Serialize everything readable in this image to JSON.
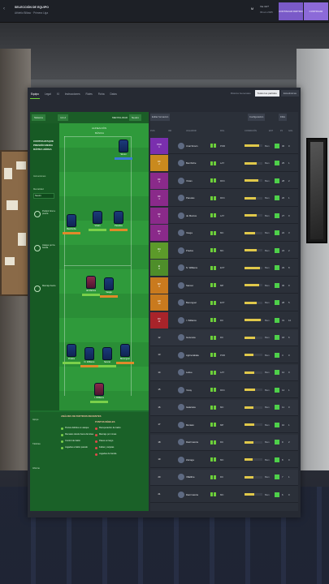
{
  "header": {
    "title": "SELECCIÓN DE EQUIPO",
    "subtitle": "Athletic Bilbao · Primera Liga",
    "money": "M",
    "date_top": "Vie 14/7",
    "date_bottom": "09:am 2025",
    "btn_continue": "CONTINUAR PARTIDO",
    "btn_next": "CONTINUAR"
  },
  "tabs": [
    "Equipo",
    "Legal",
    "XI",
    "Instrucciones",
    "Roles",
    "Ficha",
    "Datos"
  ],
  "view_tabs": [
    "Rótulos Generales",
    "Todos los partidos",
    "Estadísticas"
  ],
  "pitch": {
    "toolbar": {
      "formation": "Sistema",
      "shape": "4-4-2",
      "mentality_label": "MENTALIDAD",
      "mentality_value": "Neutro"
    },
    "left_col": {
      "title": "Contraataque Presión Media Rápida Aérea",
      "instructions_label": "Instrucciones",
      "mentality_label": "Mentalidad",
      "mentality_value": "Neutro",
      "items": [
        "Preferir tirar a puerta",
        "Ataque por la banda",
        "Marcaje fuerte"
      ]
    },
    "field_label_top": "ALINEACIÓN",
    "field_label_sub": "BÁSICA",
    "players": [
      {
        "name": "Simon",
        "bar": "blue"
      },
      {
        "name": "Berchiche",
        "bar": "orange"
      },
      {
        "name": "Vivian",
        "bar": "green"
      },
      {
        "name": "Paredes",
        "bar": "orange"
      },
      {
        "name": "de Marcos",
        "bar": "green"
      },
      {
        "name": "Vesga",
        "bar": "orange"
      },
      {
        "name": "Prados",
        "bar": "green"
      },
      {
        "name": "N. Williams",
        "bar": "orange"
      },
      {
        "name": "Sancet",
        "bar": "green"
      },
      {
        "name": "Berenguer",
        "bar": "orange"
      },
      {
        "name": "I. Williams",
        "bar": "green"
      }
    ],
    "bottom": {
      "left_head": "ANÁLISIS DE PARTIDOS RECIENTES",
      "right_head": "PUNTOS DÉBILES",
      "left_items": [
        "Puntos débiles en ataque",
        "Remates desde fuera del área",
        "Control de balón",
        "Jugadas a balón parado"
      ],
      "right_items": [
        "Recuperación de balón",
        "Marcaje por zonas",
        "Pases en largo",
        "Faltas y tarjetas",
        "Jugadas de banda"
      ],
      "side_items": [
        "Apoyo",
        "Tácticas",
        "Informe"
      ]
    }
  },
  "table": {
    "toolbar": {
      "left": "Editar formación",
      "mid": "Configuración",
      "right": "Filtro"
    },
    "columns": [
      "POS",
      "INF",
      "JUGADOR",
      "ROL",
      "CONDICIÓN",
      "EST",
      "PJ",
      "GOL"
    ],
    "rows": [
      {
        "pos": "POR",
        "num": "1",
        "name": "Unai Simón",
        "role": "POR",
        "fill": 0.8,
        "cond": "Bien",
        "pj": "30",
        "gol": "0",
        "color": "#7a2fae"
      },
      {
        "pos": "DF",
        "num": "2",
        "name": "Berchiche",
        "role": "LAT",
        "fill": 0.7,
        "cond": "Bien",
        "pj": "25",
        "gol": "1",
        "color": "#c98a1e"
      },
      {
        "pos": "DF",
        "num": "3",
        "name": "Vivian",
        "role": "DFC",
        "fill": 0.75,
        "cond": "Bien",
        "pj": "28",
        "gol": "2",
        "color": "#8a2a8a"
      },
      {
        "pos": "DF",
        "num": "4",
        "name": "Paredes",
        "role": "DFC",
        "fill": 0.65,
        "cond": "Bien",
        "pj": "26",
        "gol": "1",
        "color": "#8a2a8a"
      },
      {
        "pos": "DF",
        "num": "5",
        "name": "de Marcos",
        "role": "LAT",
        "fill": 0.7,
        "cond": "Bien",
        "pj": "27",
        "gol": "0",
        "color": "#8a2a8a"
      },
      {
        "pos": "MC",
        "num": "6",
        "name": "Vesga",
        "role": "MC",
        "fill": 0.6,
        "cond": "Bien",
        "pj": "22",
        "gol": "3",
        "color": "#8a2a8a"
      },
      {
        "pos": "MC",
        "num": "7",
        "name": "Prados",
        "role": "MC",
        "fill": 0.7,
        "cond": "Bien",
        "pj": "24",
        "gol": "2",
        "color": "#5c9a2a"
      },
      {
        "pos": "EI",
        "num": "8",
        "name": "N. Williams",
        "role": "EXT",
        "fill": 0.85,
        "cond": "Bien",
        "pj": "29",
        "gol": "8",
        "color": "#4e8e2a"
      },
      {
        "pos": "MP",
        "num": "9",
        "name": "Sancet",
        "role": "MP",
        "fill": 0.8,
        "cond": "Bien",
        "pj": "30",
        "gol": "9",
        "color": "#c97a1e"
      },
      {
        "pos": "ED",
        "num": "10",
        "name": "Berenguer",
        "role": "EXT",
        "fill": 0.7,
        "cond": "Bien",
        "pj": "28",
        "gol": "5",
        "color": "#c97a1e"
      },
      {
        "pos": "DC",
        "num": "11",
        "name": "I. Williams",
        "role": "DC",
        "fill": 0.9,
        "cond": "Bien",
        "pj": "31",
        "gol": "12",
        "color": "#a8242a"
      },
      {
        "pos": "",
        "num": "12",
        "name": "Guruzeta",
        "role": "DC",
        "fill": 0.6,
        "cond": "Bien",
        "pj": "18",
        "gol": "6",
        "color": ""
      },
      {
        "pos": "",
        "num": "13",
        "name": "Agirrezabala",
        "role": "POR",
        "fill": 0.5,
        "cond": "Bien",
        "pj": "4",
        "gol": "0",
        "color": ""
      },
      {
        "pos": "",
        "num": "14",
        "name": "Lekue",
        "role": "LAT",
        "fill": 0.55,
        "cond": "Bien",
        "pj": "12",
        "gol": "0",
        "color": ""
      },
      {
        "pos": "",
        "num": "15",
        "name": "Yeray",
        "role": "DFC",
        "fill": 0.6,
        "cond": "Bien",
        "pj": "14",
        "gol": "1",
        "color": ""
      },
      {
        "pos": "",
        "num": "16",
        "name": "Galarreta",
        "role": "MC",
        "fill": 0.5,
        "cond": "Bien",
        "pj": "11",
        "gol": "0",
        "color": ""
      },
      {
        "pos": "",
        "num": "17",
        "name": "Muniain",
        "role": "MP",
        "fill": 0.55,
        "cond": "Bien",
        "pj": "10",
        "gol": "1",
        "color": ""
      },
      {
        "pos": "",
        "num": "18",
        "name": "Raúl García",
        "role": "DC",
        "fill": 0.5,
        "cond": "Bien",
        "pj": "9",
        "gol": "2",
        "color": ""
      },
      {
        "pos": "",
        "num": "19",
        "name": "Zarraga",
        "role": "MC",
        "fill": 0.45,
        "cond": "Bien",
        "pj": "8",
        "gol": "0",
        "color": ""
      },
      {
        "pos": "",
        "num": "20",
        "name": "Villalibre",
        "role": "DC",
        "fill": 0.5,
        "cond": "Bien",
        "pj": "7",
        "gol": "1",
        "color": ""
      },
      {
        "pos": "",
        "num": "21",
        "name": "Dani García",
        "role": "MC",
        "fill": 0.55,
        "cond": "Bien",
        "pj": "6",
        "gol": "0",
        "color": ""
      }
    ]
  }
}
